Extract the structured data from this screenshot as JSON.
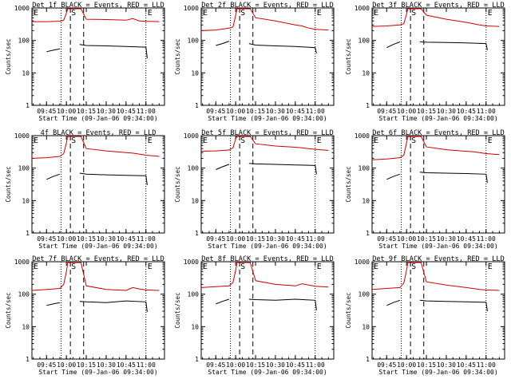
{
  "colors": {
    "events": "#000000",
    "lld": "#cc0000",
    "axes": "#000000",
    "background": "#ffffff"
  },
  "shared": {
    "ylabel": "Counts/sec",
    "xlabel": "Start Time (09-Jan-06 09:34:00)",
    "y_ticks": [
      "1",
      "10",
      "100",
      "1000"
    ],
    "x_ticks": [
      "09:45",
      "10:00",
      "10:15",
      "10:30",
      "10:45",
      "11:00"
    ],
    "marker_s": "S",
    "marker_e": "E"
  },
  "chart_data": [
    {
      "type": "line",
      "title": "Det 1f BLACK = Events, RED = LLD",
      "ylim": [
        1,
        1000
      ],
      "yscale": "log",
      "x_ticks": [
        "09:45",
        "10:00",
        "10:15",
        "10:30",
        "10:45",
        "11:00"
      ],
      "xlabel": "Start Time (09-Jan-06 09:34:00)",
      "ylabel": "Counts/sec",
      "series": [
        {
          "x": [
            "09:34",
            "09:45",
            "09:55",
            "09:58",
            "10:00",
            "10:01",
            "10:03",
            "10:10",
            "10:11",
            "10:15",
            "10:30",
            "10:45",
            "10:50",
            "10:55",
            "11:00",
            "11:10"
          ],
          "y": [
            380,
            380,
            390,
            420,
            700,
            1000,
            1000,
            1000,
            1000,
            450,
            440,
            420,
            470,
            400,
            390,
            380
          ]
        },
        {
          "x": [
            "09:45",
            "09:50",
            "09:55",
            "",
            "10:10",
            "10:15",
            "10:30",
            "10:45",
            "11:00",
            "11:01"
          ],
          "y": [
            45,
            50,
            55,
            null,
            75,
            70,
            68,
            65,
            62,
            28
          ]
        }
      ]
    },
    {
      "type": "line",
      "title": "Det 2f BLACK = Events, RED = LLD",
      "ylim": [
        1,
        1000
      ],
      "yscale": "log",
      "x_ticks": [
        "09:45",
        "10:00",
        "10:15",
        "10:30",
        "10:45",
        "11:00"
      ],
      "xlabel": "Start Time (09-Jan-06 09:34:00)",
      "ylabel": "Counts/sec",
      "series": [
        {
          "x": [
            "09:34",
            "09:45",
            "09:55",
            "09:58",
            "10:00",
            "10:01",
            "10:03",
            "10:10",
            "10:11",
            "10:15",
            "10:30",
            "10:45",
            "10:50",
            "10:55",
            "11:00",
            "11:10"
          ],
          "y": [
            200,
            210,
            240,
            260,
            600,
            1000,
            1000,
            1000,
            1000,
            500,
            400,
            300,
            280,
            240,
            220,
            210
          ]
        },
        {
          "x": [
            "09:45",
            "09:50",
            "09:55",
            "",
            "10:10",
            "10:15",
            "10:30",
            "10:45",
            "11:00",
            "11:01"
          ],
          "y": [
            70,
            80,
            95,
            null,
            80,
            72,
            68,
            65,
            60,
            40
          ]
        }
      ]
    },
    {
      "type": "line",
      "title": "Det 3f BLACK = Events, RED = LLD",
      "ylim": [
        1,
        1000
      ],
      "yscale": "log",
      "x_ticks": [
        "09:45",
        "10:00",
        "10:15",
        "10:30",
        "10:45",
        "11:00"
      ],
      "xlabel": "Start Time (09-Jan-06 09:34:00)",
      "ylabel": "Counts/sec",
      "series": [
        {
          "x": [
            "09:34",
            "09:45",
            "09:55",
            "09:58",
            "10:00",
            "10:01",
            "10:03",
            "10:10",
            "10:11",
            "10:15",
            "10:30",
            "10:45",
            "10:50",
            "10:55",
            "11:00",
            "11:10"
          ],
          "y": [
            270,
            280,
            300,
            330,
            650,
            1000,
            1000,
            1000,
            1000,
            600,
            450,
            360,
            330,
            300,
            280,
            270
          ]
        },
        {
          "x": [
            "09:45",
            "09:50",
            "09:55",
            "",
            "10:10",
            "10:15",
            "10:30",
            "10:45",
            "11:00",
            "11:01"
          ],
          "y": [
            60,
            75,
            90,
            null,
            90,
            88,
            86,
            84,
            80,
            50
          ]
        }
      ]
    },
    {
      "type": "line",
      "title": "4f BLACK = Events, RED = LLD",
      "ylim": [
        1,
        1000
      ],
      "yscale": "log",
      "x_ticks": [
        "09:45",
        "10:00",
        "10:15",
        "10:30",
        "10:45",
        "11:00"
      ],
      "xlabel": "Start Time (09-Jan-06 09:34:00)",
      "ylabel": "Counts/sec",
      "series": [
        {
          "x": [
            "09:34",
            "09:45",
            "09:55",
            "09:58",
            "10:00",
            "10:01",
            "10:03",
            "10:10",
            "10:11",
            "10:15",
            "10:30",
            "10:45",
            "10:50",
            "10:55",
            "11:00",
            "11:10"
          ],
          "y": [
            200,
            210,
            230,
            280,
            600,
            1000,
            1000,
            1000,
            1000,
            400,
            340,
            300,
            290,
            270,
            250,
            230
          ]
        },
        {
          "x": [
            "09:45",
            "09:50",
            "09:55",
            "",
            "10:10",
            "10:15",
            "10:30",
            "10:45",
            "11:00",
            "11:01"
          ],
          "y": [
            45,
            55,
            65,
            null,
            70,
            65,
            62,
            60,
            58,
            30
          ]
        }
      ]
    },
    {
      "type": "line",
      "title": "Det 5f BLACK = Events, RED = LLD",
      "ylim": [
        1,
        1000
      ],
      "yscale": "log",
      "x_ticks": [
        "09:45",
        "10:00",
        "10:15",
        "10:30",
        "10:45",
        "11:00"
      ],
      "xlabel": "Start Time (09-Jan-06 09:34:00)",
      "ylabel": "Counts/sec",
      "series": [
        {
          "x": [
            "09:34",
            "09:45",
            "09:55",
            "09:58",
            "10:00",
            "10:01",
            "10:03",
            "10:10",
            "10:11",
            "10:15",
            "10:30",
            "10:45",
            "10:50",
            "10:55",
            "11:00",
            "11:10"
          ],
          "y": [
            330,
            340,
            360,
            420,
            800,
            1000,
            1000,
            1000,
            1000,
            560,
            480,
            440,
            420,
            400,
            380,
            350
          ]
        },
        {
          "x": [
            "09:45",
            "09:50",
            "09:55",
            "",
            "10:10",
            "10:15",
            "10:30",
            "10:45",
            "11:00",
            "11:01"
          ],
          "y": [
            90,
            110,
            130,
            null,
            140,
            135,
            130,
            125,
            120,
            65
          ]
        }
      ]
    },
    {
      "type": "line",
      "title": "Det 6f BLACK = Events, RED = LLD",
      "ylim": [
        1,
        1000
      ],
      "yscale": "log",
      "x_ticks": [
        "09:45",
        "10:00",
        "10:15",
        "10:30",
        "10:45",
        "11:00"
      ],
      "xlabel": "Start Time (09-Jan-06 09:34:00)",
      "ylabel": "Counts/sec",
      "series": [
        {
          "x": [
            "09:34",
            "09:45",
            "09:55",
            "09:58",
            "10:00",
            "10:01",
            "10:03",
            "10:10",
            "10:11",
            "10:15",
            "10:30",
            "10:45",
            "10:50",
            "10:55",
            "11:00",
            "11:10"
          ],
          "y": [
            180,
            190,
            210,
            250,
            600,
            1000,
            1000,
            1000,
            1000,
            450,
            370,
            330,
            320,
            300,
            280,
            260
          ]
        },
        {
          "x": [
            "09:45",
            "09:50",
            "09:55",
            "",
            "10:10",
            "10:15",
            "10:30",
            "10:45",
            "11:00",
            "11:01"
          ],
          "y": [
            45,
            55,
            65,
            null,
            75,
            72,
            70,
            68,
            65,
            35
          ]
        }
      ]
    },
    {
      "type": "line",
      "title": "Det 7f BLACK = Events, RED = LLD",
      "ylim": [
        1,
        1000
      ],
      "yscale": "log",
      "x_ticks": [
        "09:45",
        "10:00",
        "10:15",
        "10:30",
        "10:45",
        "11:00"
      ],
      "xlabel": "Start Time (09-Jan-06 09:34:00)",
      "ylabel": "Counts/sec",
      "series": [
        {
          "x": [
            "09:34",
            "09:45",
            "09:55",
            "09:58",
            "10:00",
            "10:01",
            "10:03",
            "10:10",
            "10:11",
            "10:15",
            "10:30",
            "10:45",
            "10:50",
            "10:55",
            "11:00",
            "11:10"
          ],
          "y": [
            130,
            140,
            150,
            200,
            500,
            1000,
            1000,
            1000,
            1000,
            180,
            140,
            130,
            160,
            145,
            135,
            130
          ]
        },
        {
          "x": [
            "09:45",
            "09:50",
            "09:55",
            "",
            "10:10",
            "10:15",
            "10:30",
            "10:45",
            "11:00",
            "11:01"
          ],
          "y": [
            45,
            50,
            55,
            null,
            60,
            58,
            55,
            62,
            58,
            28
          ]
        }
      ]
    },
    {
      "type": "line",
      "title": "Det 8f BLACK = Events, RED = LLD",
      "ylim": [
        1,
        1000
      ],
      "yscale": "log",
      "x_ticks": [
        "09:45",
        "10:00",
        "10:15",
        "10:30",
        "10:45",
        "11:00"
      ],
      "xlabel": "Start Time (09-Jan-06 09:34:00)",
      "ylabel": "Counts/sec",
      "series": [
        {
          "x": [
            "09:34",
            "09:45",
            "09:55",
            "09:58",
            "10:00",
            "10:01",
            "10:03",
            "10:10",
            "10:11",
            "10:15",
            "10:30",
            "10:45",
            "10:50",
            "10:55",
            "11:00",
            "11:10"
          ],
          "y": [
            160,
            170,
            180,
            230,
            550,
            1000,
            1000,
            1000,
            1000,
            260,
            200,
            180,
            210,
            190,
            175,
            165
          ]
        },
        {
          "x": [
            "09:45",
            "09:50",
            "09:55",
            "",
            "10:10",
            "10:15",
            "10:30",
            "10:45",
            "11:00",
            "11:01"
          ],
          "y": [
            50,
            60,
            70,
            null,
            70,
            68,
            65,
            70,
            65,
            32
          ]
        }
      ]
    },
    {
      "type": "line",
      "title": "Det 9f BLACK = Events, RED = LLD",
      "ylim": [
        1,
        1000
      ],
      "yscale": "log",
      "x_ticks": [
        "09:45",
        "10:00",
        "10:15",
        "10:30",
        "10:45",
        "11:00"
      ],
      "xlabel": "Start Time (09-Jan-06 09:34:00)",
      "ylabel": "Counts/sec",
      "series": [
        {
          "x": [
            "09:34",
            "09:45",
            "09:55",
            "09:58",
            "10:00",
            "10:01",
            "10:03",
            "10:10",
            "10:11",
            "10:15",
            "10:30",
            "10:45",
            "10:50",
            "10:55",
            "11:00",
            "11:10"
          ],
          "y": [
            140,
            150,
            160,
            220,
            550,
            1000,
            1000,
            1000,
            1000,
            240,
            190,
            160,
            150,
            140,
            135,
            130
          ]
        },
        {
          "x": [
            "09:45",
            "09:50",
            "09:55",
            "",
            "10:10",
            "10:15",
            "10:30",
            "10:45",
            "11:00",
            "11:01"
          ],
          "y": [
            45,
            55,
            65,
            null,
            65,
            62,
            60,
            58,
            56,
            30
          ]
        }
      ]
    }
  ]
}
